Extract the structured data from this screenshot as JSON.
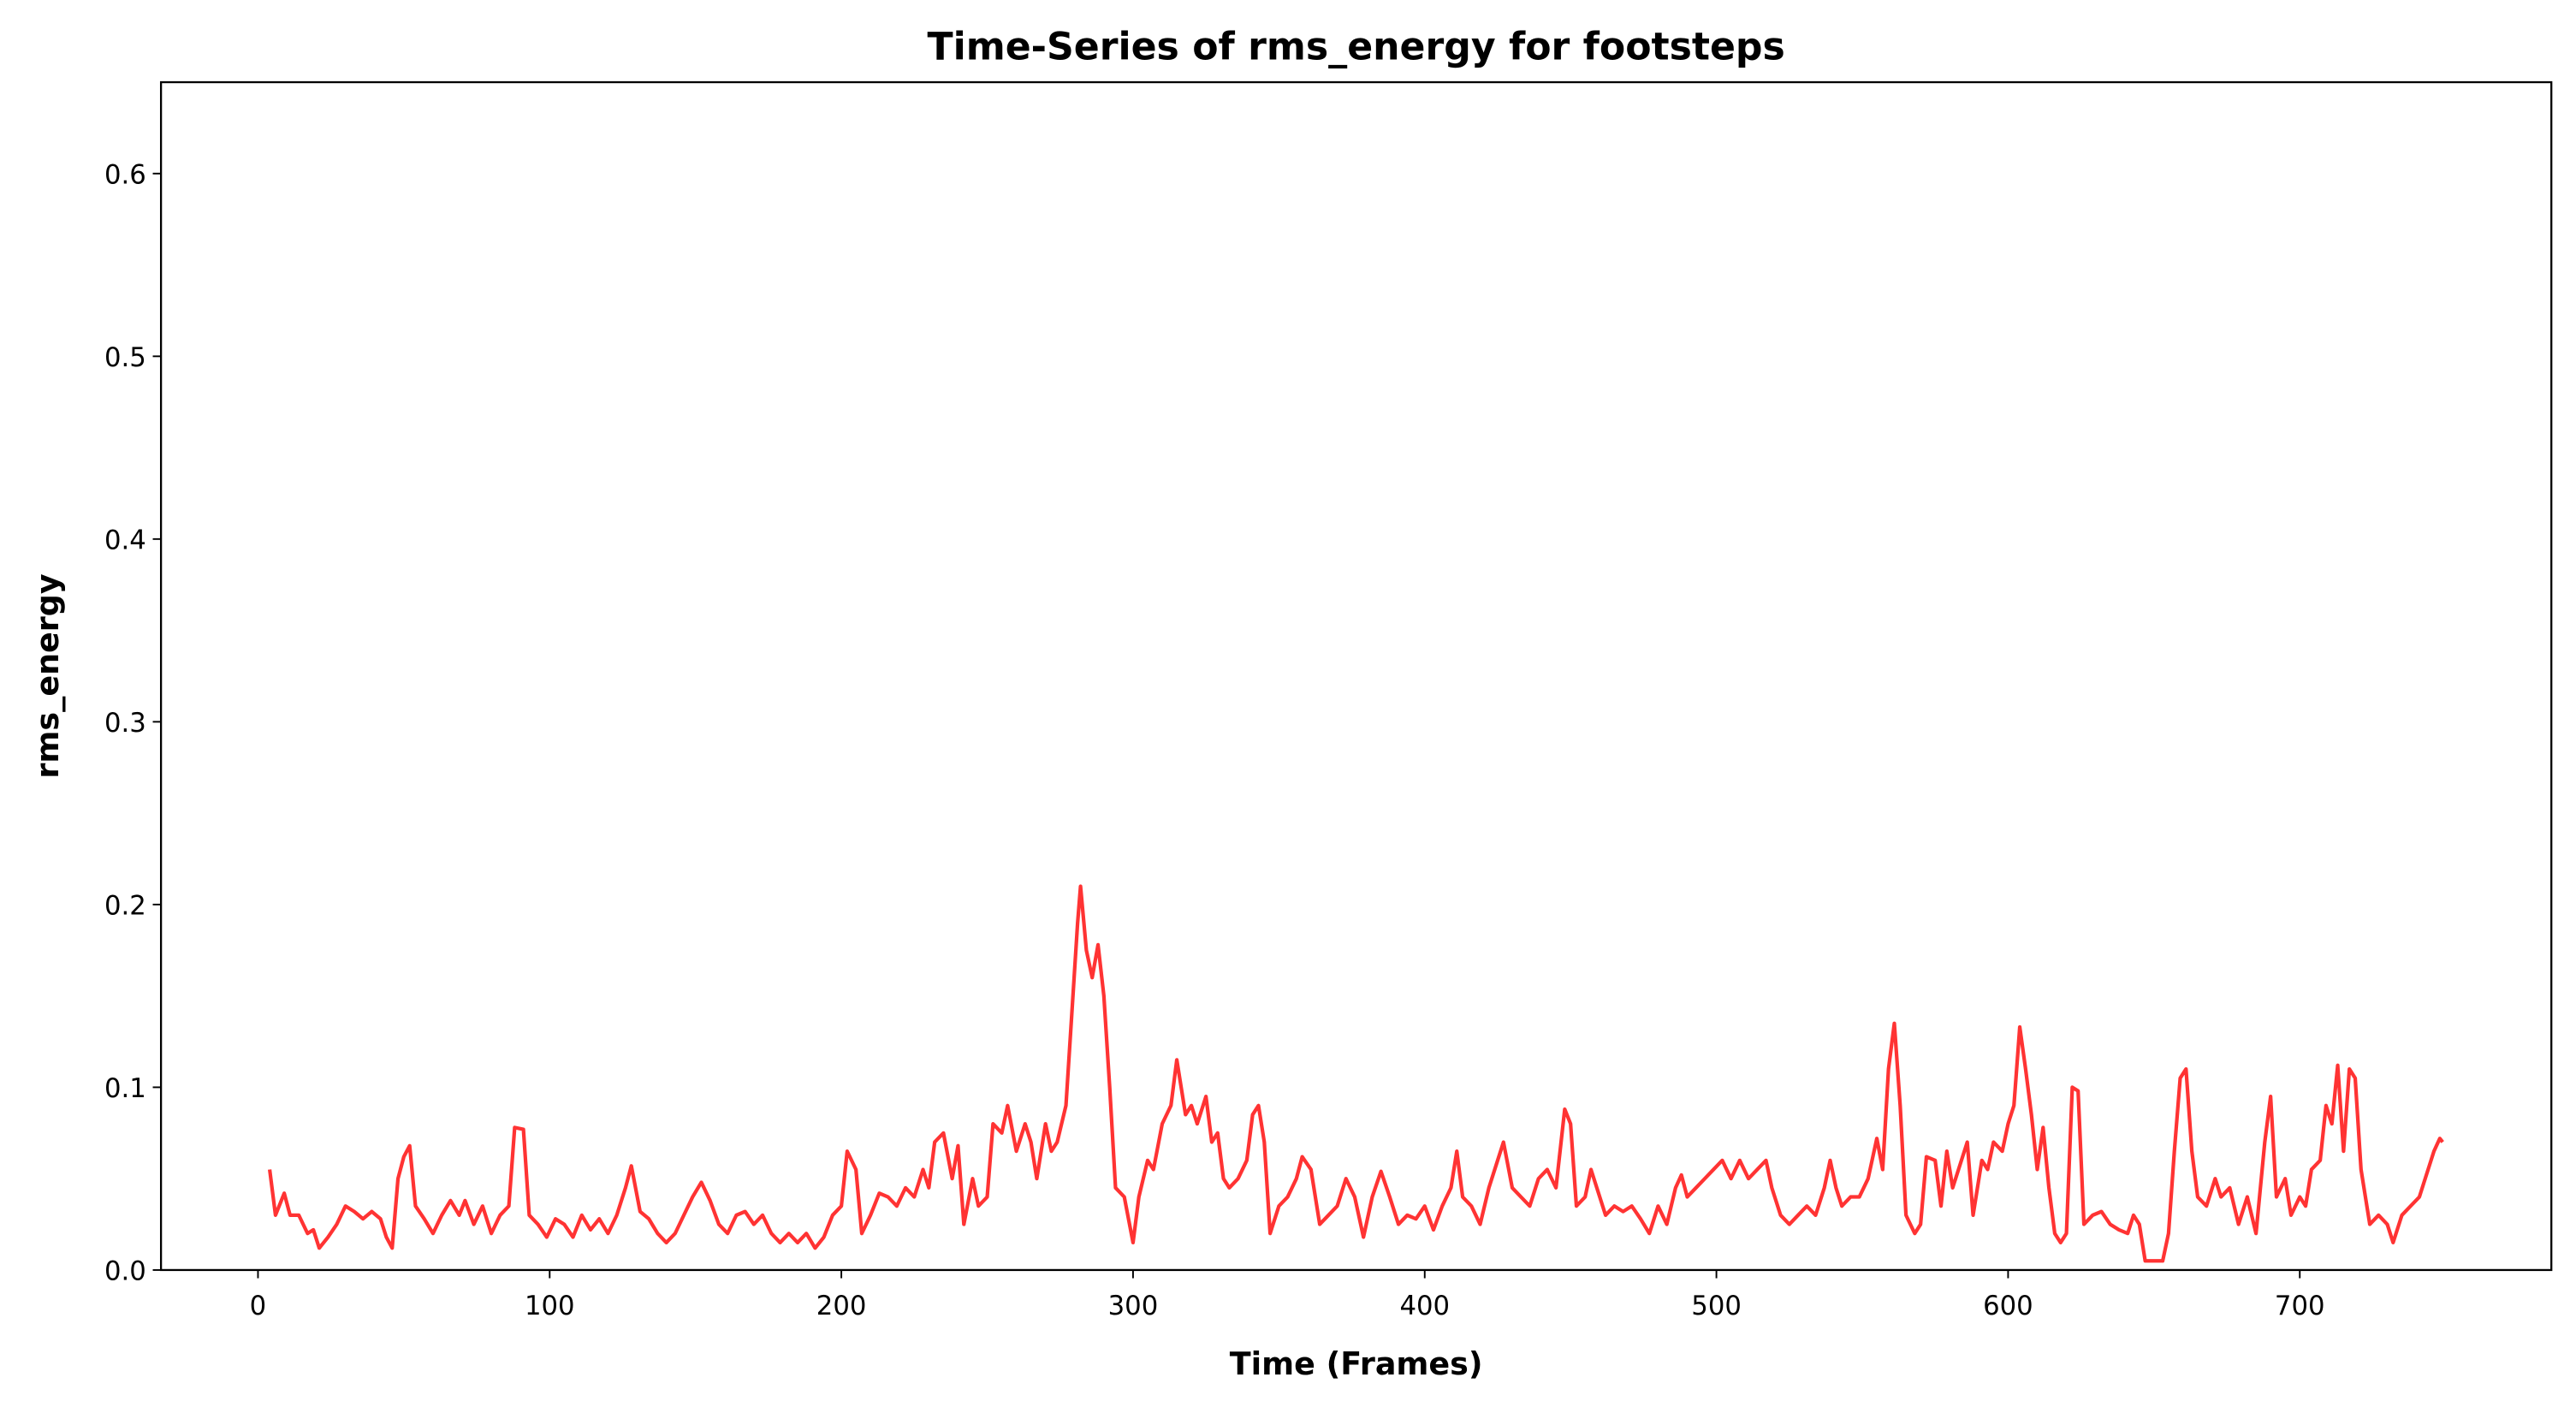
{
  "chart_data": {
    "type": "line",
    "title": "Time-Series of rms_energy for footsteps",
    "x_label": "Time (Frames)",
    "y_label": "rms_energy",
    "xlim": [
      -33.25,
      786.25
    ],
    "ylim": [
      0,
      0.65
    ],
    "xticks": [
      0,
      100,
      200,
      300,
      400,
      500,
      600,
      700
    ],
    "yticks": [
      {
        "value": 0,
        "label": "0.0"
      },
      0.1,
      0.2,
      0.3,
      0.4,
      0.5,
      0.6
    ],
    "grid": false,
    "series": [
      {
        "name": "rms_energy",
        "color": "#ff3333",
        "x": [
          4,
          6,
          9,
          11,
          14,
          17,
          19,
          21,
          24,
          27,
          30,
          33,
          36,
          39,
          42,
          44,
          46,
          48,
          50,
          52,
          54,
          57,
          60,
          63,
          66,
          69,
          71,
          74,
          77,
          80,
          83,
          86,
          88,
          91,
          93,
          96,
          99,
          102,
          105,
          108,
          111,
          114,
          117,
          120,
          123,
          126,
          128,
          131,
          134,
          137,
          140,
          143,
          146,
          149,
          152,
          155,
          158,
          161,
          164,
          167,
          170,
          173,
          176,
          179,
          182,
          185,
          188,
          191,
          194,
          197,
          200,
          202,
          205,
          207,
          210,
          213,
          216,
          219,
          222,
          225,
          228,
          230,
          232,
          235,
          238,
          240,
          242,
          245,
          247,
          250,
          252,
          255,
          257,
          260,
          263,
          265,
          267,
          270,
          272,
          274,
          277,
          279,
          281,
          282,
          284,
          286,
          288,
          290,
          292,
          294,
          297,
          300,
          302,
          305,
          307,
          310,
          313,
          315,
          318,
          320,
          322,
          325,
          327,
          329,
          331,
          333,
          336,
          339,
          341,
          343,
          345,
          347,
          350,
          353,
          356,
          358,
          361,
          364,
          367,
          370,
          373,
          376,
          379,
          382,
          385,
          388,
          391,
          394,
          397,
          400,
          403,
          406,
          409,
          411,
          413,
          416,
          419,
          422,
          425,
          427,
          430,
          433,
          436,
          439,
          442,
          445,
          448,
          450,
          452,
          455,
          457,
          459,
          462,
          465,
          468,
          471,
          474,
          477,
          480,
          483,
          486,
          488,
          490,
          493,
          496,
          499,
          502,
          505,
          508,
          511,
          514,
          517,
          519,
          522,
          525,
          528,
          531,
          534,
          537,
          539,
          541,
          543,
          546,
          549,
          552,
          555,
          557,
          559,
          561,
          563,
          565,
          568,
          570,
          572,
          575,
          577,
          579,
          581,
          583,
          586,
          588,
          591,
          593,
          595,
          598,
          600,
          602,
          604,
          606,
          608,
          610,
          612,
          614,
          616,
          618,
          620,
          622,
          624,
          626,
          629,
          632,
          635,
          638,
          641,
          643,
          645,
          647,
          650,
          653,
          655,
          657,
          659,
          661,
          663,
          665,
          668,
          671,
          673,
          676,
          679,
          682,
          685,
          688,
          690,
          692,
          695,
          697,
          700,
          702,
          704,
          707,
          709,
          711,
          713,
          715,
          717,
          719,
          721,
          724,
          727,
          730,
          732,
          735,
          738,
          741,
          743,
          746,
          748,
          749
        ],
        "values": [
          0.055,
          0.03,
          0.042,
          0.03,
          0.03,
          0.02,
          0.022,
          0.012,
          0.018,
          0.025,
          0.035,
          0.032,
          0.028,
          0.032,
          0.028,
          0.018,
          0.012,
          0.05,
          0.062,
          0.068,
          0.035,
          0.028,
          0.02,
          0.03,
          0.038,
          0.03,
          0.038,
          0.025,
          0.035,
          0.02,
          0.03,
          0.035,
          0.078,
          0.077,
          0.03,
          0.025,
          0.018,
          0.028,
          0.025,
          0.018,
          0.03,
          0.022,
          0.028,
          0.02,
          0.03,
          0.045,
          0.057,
          0.032,
          0.028,
          0.02,
          0.015,
          0.02,
          0.03,
          0.04,
          0.048,
          0.038,
          0.025,
          0.02,
          0.03,
          0.032,
          0.025,
          0.03,
          0.02,
          0.015,
          0.02,
          0.015,
          0.02,
          0.012,
          0.018,
          0.03,
          0.035,
          0.065,
          0.055,
          0.02,
          0.03,
          0.042,
          0.04,
          0.035,
          0.045,
          0.04,
          0.055,
          0.045,
          0.07,
          0.075,
          0.05,
          0.068,
          0.025,
          0.05,
          0.035,
          0.04,
          0.08,
          0.075,
          0.09,
          0.065,
          0.08,
          0.07,
          0.05,
          0.08,
          0.065,
          0.07,
          0.09,
          0.14,
          0.19,
          0.21,
          0.175,
          0.16,
          0.178,
          0.15,
          0.1,
          0.045,
          0.04,
          0.015,
          0.04,
          0.06,
          0.055,
          0.08,
          0.09,
          0.115,
          0.085,
          0.09,
          0.08,
          0.095,
          0.07,
          0.075,
          0.05,
          0.045,
          0.05,
          0.06,
          0.085,
          0.09,
          0.07,
          0.02,
          0.035,
          0.04,
          0.05,
          0.062,
          0.055,
          0.025,
          0.03,
          0.035,
          0.05,
          0.04,
          0.018,
          0.04,
          0.054,
          0.04,
          0.025,
          0.03,
          0.028,
          0.035,
          0.022,
          0.035,
          0.045,
          0.065,
          0.04,
          0.035,
          0.025,
          0.045,
          0.06,
          0.07,
          0.045,
          0.04,
          0.035,
          0.05,
          0.055,
          0.045,
          0.088,
          0.08,
          0.035,
          0.04,
          0.055,
          0.045,
          0.03,
          0.035,
          0.032,
          0.035,
          0.028,
          0.02,
          0.035,
          0.025,
          0.045,
          0.052,
          0.04,
          0.045,
          0.05,
          0.055,
          0.06,
          0.05,
          0.06,
          0.05,
          0.055,
          0.06,
          0.045,
          0.03,
          0.025,
          0.03,
          0.035,
          0.03,
          0.045,
          0.06,
          0.045,
          0.035,
          0.04,
          0.04,
          0.05,
          0.072,
          0.055,
          0.11,
          0.135,
          0.09,
          0.03,
          0.02,
          0.025,
          0.062,
          0.06,
          0.035,
          0.065,
          0.045,
          0.055,
          0.07,
          0.03,
          0.06,
          0.055,
          0.07,
          0.065,
          0.08,
          0.09,
          0.133,
          0.11,
          0.085,
          0.055,
          0.078,
          0.045,
          0.02,
          0.015,
          0.02,
          0.1,
          0.098,
          0.025,
          0.03,
          0.032,
          0.025,
          0.022,
          0.02,
          0.03,
          0.025,
          0.005,
          0.005,
          0.005,
          0.02,
          0.065,
          0.105,
          0.11,
          0.065,
          0.04,
          0.035,
          0.05,
          0.04,
          0.045,
          0.025,
          0.04,
          0.02,
          0.07,
          0.095,
          0.04,
          0.05,
          0.03,
          0.04,
          0.035,
          0.055,
          0.06,
          0.09,
          0.08,
          0.112,
          0.065,
          0.11,
          0.105,
          0.055,
          0.025,
          0.03,
          0.025,
          0.015,
          0.03,
          0.035,
          0.04,
          0.05,
          0.065,
          0.072,
          0.07
        ]
      }
    ]
  }
}
